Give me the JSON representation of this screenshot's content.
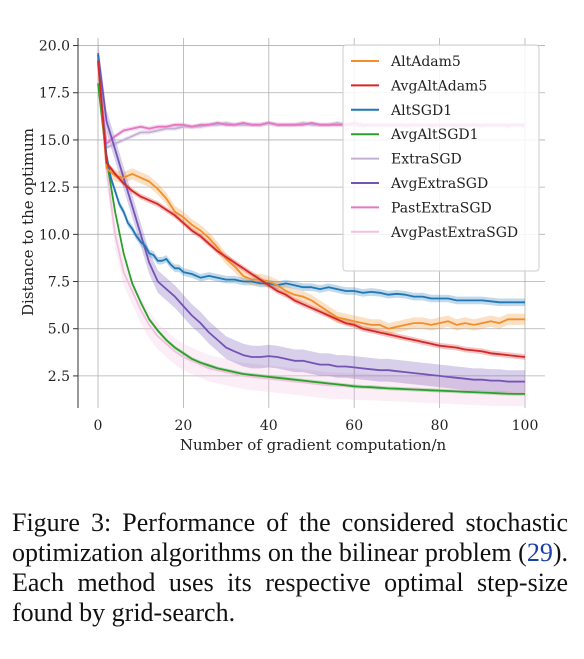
{
  "caption": {
    "prefix": "Figure 3:",
    "text_before_ref": "Performance of the considered stochastic optimization algorithms on the bilinear problem (",
    "ref": "29",
    "text_after_ref": "). Each method uses its respective optimal step-size found by grid-search."
  },
  "chart_data": {
    "type": "line",
    "title": "",
    "xlabel": "Number of gradient computation/n",
    "ylabel": "Distance to the optimum",
    "xlim": [
      0,
      100
    ],
    "ylim": [
      0.8,
      20.4
    ],
    "xticks": [
      0,
      20,
      40,
      60,
      80,
      100
    ],
    "yticks": [
      2.5,
      5.0,
      7.5,
      10.0,
      12.5,
      15.0,
      17.5,
      20.0
    ],
    "xtick_labels": [
      "0",
      "20",
      "40",
      "60",
      "80",
      "100"
    ],
    "ytick_labels": [
      "2.5",
      "5.0",
      "7.5",
      "10.0",
      "12.5",
      "15.0",
      "17.5",
      "20.0"
    ],
    "grid": true,
    "legend_position": "top-right",
    "series": [
      {
        "name": "AltAdam5",
        "color": "#f28e2b",
        "x": [
          0,
          2,
          4,
          6,
          8,
          10,
          12,
          14,
          16,
          18,
          20,
          22,
          24,
          26,
          28,
          30,
          32,
          34,
          36,
          38,
          40,
          42,
          44,
          46,
          48,
          50,
          52,
          54,
          56,
          58,
          60,
          62,
          64,
          66,
          68,
          70,
          72,
          74,
          76,
          78,
          80,
          82,
          84,
          86,
          88,
          90,
          92,
          94,
          96,
          98,
          100
        ],
        "y": [
          19.2,
          13.5,
          13.1,
          13.0,
          13.2,
          13.0,
          12.8,
          12.4,
          11.9,
          11.2,
          10.9,
          10.5,
          10.2,
          9.8,
          9.3,
          8.7,
          8.3,
          7.8,
          7.6,
          7.6,
          7.5,
          7.3,
          7.0,
          6.8,
          6.7,
          6.5,
          6.2,
          5.9,
          5.6,
          5.5,
          5.4,
          5.3,
          5.2,
          5.2,
          5.0,
          5.1,
          5.2,
          5.3,
          5.3,
          5.2,
          5.3,
          5.4,
          5.2,
          5.3,
          5.2,
          5.3,
          5.4,
          5.3,
          5.5,
          5.5,
          5.5
        ],
        "band": 0.3
      },
      {
        "name": "AvgAltAdam5",
        "color": "#d62728",
        "x": [
          0,
          2,
          4,
          6,
          8,
          10,
          12,
          14,
          16,
          18,
          20,
          22,
          24,
          26,
          28,
          30,
          32,
          34,
          36,
          38,
          40,
          42,
          44,
          46,
          48,
          50,
          52,
          54,
          56,
          58,
          60,
          62,
          64,
          66,
          68,
          70,
          72,
          74,
          76,
          78,
          80,
          82,
          84,
          86,
          88,
          90,
          92,
          94,
          96,
          98,
          100
        ],
        "y": [
          19.2,
          13.8,
          13.2,
          12.7,
          12.3,
          12.0,
          11.8,
          11.6,
          11.3,
          11.0,
          10.6,
          10.2,
          9.9,
          9.5,
          9.1,
          8.8,
          8.5,
          8.2,
          7.9,
          7.6,
          7.3,
          7.0,
          6.8,
          6.5,
          6.3,
          6.1,
          5.9,
          5.7,
          5.5,
          5.3,
          5.2,
          5.0,
          4.9,
          4.8,
          4.7,
          4.6,
          4.5,
          4.4,
          4.3,
          4.2,
          4.1,
          4.05,
          4.0,
          3.9,
          3.85,
          3.8,
          3.7,
          3.65,
          3.6,
          3.55,
          3.5
        ],
        "band": 0.15
      },
      {
        "name": "AltSGD1",
        "color": "#1f77b4",
        "x": [
          0,
          1,
          2,
          3,
          4,
          5,
          6,
          7,
          8,
          9,
          10,
          11,
          12,
          13,
          14,
          15,
          16,
          17,
          18,
          19,
          20,
          22,
          24,
          26,
          28,
          30,
          32,
          34,
          36,
          38,
          40,
          42,
          44,
          46,
          48,
          50,
          52,
          54,
          56,
          58,
          60,
          62,
          64,
          66,
          68,
          70,
          72,
          74,
          76,
          78,
          80,
          82,
          84,
          86,
          88,
          90,
          92,
          94,
          96,
          98,
          100
        ],
        "y": [
          19.5,
          16.5,
          14.2,
          13.0,
          12.3,
          11.6,
          11.2,
          10.6,
          10.3,
          9.9,
          9.6,
          9.4,
          9.0,
          8.9,
          8.6,
          8.6,
          8.7,
          8.4,
          8.2,
          8.2,
          8.0,
          7.9,
          7.7,
          7.8,
          7.7,
          7.6,
          7.6,
          7.5,
          7.5,
          7.4,
          7.4,
          7.3,
          7.4,
          7.3,
          7.2,
          7.2,
          7.1,
          7.2,
          7.1,
          7.0,
          7.0,
          6.9,
          6.95,
          6.9,
          6.8,
          6.85,
          6.8,
          6.7,
          6.7,
          6.6,
          6.6,
          6.6,
          6.5,
          6.5,
          6.5,
          6.5,
          6.45,
          6.4,
          6.4,
          6.4,
          6.4
        ],
        "band": 0.2
      },
      {
        "name": "AvgAltSGD1",
        "color": "#2ca02c",
        "x": [
          0,
          2,
          4,
          6,
          8,
          10,
          12,
          14,
          16,
          18,
          20,
          22,
          24,
          26,
          28,
          30,
          32,
          34,
          36,
          38,
          40,
          42,
          44,
          46,
          48,
          50,
          52,
          54,
          56,
          58,
          60,
          62,
          64,
          66,
          68,
          70,
          72,
          74,
          76,
          78,
          80,
          82,
          84,
          86,
          88,
          90,
          92,
          94,
          96,
          98,
          100
        ],
        "y": [
          18.0,
          14.0,
          11.2,
          9.0,
          7.4,
          6.4,
          5.5,
          4.9,
          4.4,
          4.0,
          3.7,
          3.4,
          3.2,
          3.05,
          2.9,
          2.8,
          2.7,
          2.6,
          2.55,
          2.5,
          2.45,
          2.4,
          2.35,
          2.3,
          2.25,
          2.2,
          2.15,
          2.1,
          2.05,
          2.0,
          1.95,
          1.92,
          1.9,
          1.87,
          1.84,
          1.82,
          1.8,
          1.78,
          1.76,
          1.74,
          1.72,
          1.7,
          1.68,
          1.66,
          1.64,
          1.62,
          1.6,
          1.58,
          1.56,
          1.55,
          1.55
        ],
        "band": 0.1
      },
      {
        "name": "ExtraSGD",
        "color": "#c5b0d5",
        "x": [
          0,
          2,
          4,
          6,
          8,
          10,
          12,
          14,
          16,
          18,
          20,
          22,
          24,
          26,
          28,
          30,
          32,
          34,
          36,
          38,
          40,
          42,
          44,
          46,
          48,
          50,
          52,
          54,
          56,
          58,
          60,
          62,
          64,
          66,
          68,
          70,
          72,
          74,
          76,
          78,
          80,
          82,
          84,
          86,
          88,
          90,
          92,
          94,
          96,
          98,
          100
        ],
        "y": [
          19.3,
          14.6,
          14.8,
          15.0,
          15.2,
          15.4,
          15.4,
          15.5,
          15.6,
          15.6,
          15.7,
          15.7,
          15.7,
          15.8,
          15.8,
          15.9,
          15.8,
          15.8,
          15.8,
          15.8,
          15.9,
          15.8,
          15.8,
          15.8,
          15.9,
          15.8,
          15.8,
          15.8,
          15.9,
          15.8,
          15.8,
          15.7,
          15.8,
          15.8,
          15.8,
          15.8,
          15.7,
          15.8,
          15.8,
          15.7,
          15.8,
          15.8,
          15.7,
          15.8,
          15.8,
          15.7,
          15.8,
          15.8,
          15.7,
          15.8,
          15.7
        ],
        "band": 0.12
      },
      {
        "name": "AvgExtraSGD",
        "color": "#7453b5",
        "x": [
          0,
          2,
          4,
          6,
          8,
          10,
          12,
          14,
          16,
          18,
          20,
          22,
          24,
          26,
          28,
          30,
          32,
          34,
          36,
          38,
          40,
          42,
          44,
          46,
          48,
          50,
          52,
          54,
          56,
          58,
          60,
          62,
          64,
          66,
          68,
          70,
          72,
          74,
          76,
          78,
          80,
          82,
          84,
          86,
          88,
          90,
          92,
          94,
          96,
          98,
          100
        ],
        "y": [
          19.6,
          16.0,
          14.5,
          13.0,
          11.5,
          10.0,
          8.5,
          7.5,
          7.1,
          6.7,
          6.2,
          5.7,
          5.3,
          4.8,
          4.4,
          4.0,
          3.8,
          3.6,
          3.5,
          3.5,
          3.55,
          3.5,
          3.4,
          3.3,
          3.3,
          3.2,
          3.1,
          3.1,
          3.0,
          3.0,
          2.95,
          2.9,
          2.85,
          2.8,
          2.8,
          2.75,
          2.7,
          2.65,
          2.6,
          2.55,
          2.5,
          2.45,
          2.4,
          2.35,
          2.3,
          2.3,
          2.25,
          2.25,
          2.2,
          2.2,
          2.2
        ],
        "band": 0.6
      },
      {
        "name": "PastExtraSGD",
        "color": "#e377c2",
        "x": [
          0,
          2,
          4,
          6,
          8,
          10,
          12,
          14,
          16,
          18,
          20,
          22,
          24,
          26,
          28,
          30,
          32,
          34,
          36,
          38,
          40,
          42,
          44,
          46,
          48,
          50,
          52,
          54,
          56,
          58,
          60,
          62,
          64,
          66,
          68,
          70,
          72,
          74,
          76,
          78,
          80,
          82,
          84,
          86,
          88,
          90,
          92,
          94,
          96,
          98,
          100
        ],
        "y": [
          19.0,
          14.8,
          15.2,
          15.5,
          15.6,
          15.7,
          15.6,
          15.7,
          15.7,
          15.8,
          15.8,
          15.7,
          15.8,
          15.8,
          15.9,
          15.8,
          15.8,
          15.9,
          15.8,
          15.8,
          15.9,
          15.8,
          15.8,
          15.8,
          15.8,
          15.9,
          15.8,
          15.8,
          15.8,
          15.8,
          15.9,
          15.8,
          15.8,
          15.8,
          15.8,
          15.8,
          15.8,
          15.8,
          15.8,
          15.8,
          15.8,
          15.8,
          15.8,
          15.8,
          15.8,
          15.8,
          15.8,
          15.8,
          15.8,
          15.8,
          15.8
        ],
        "band": 0.12
      },
      {
        "name": "AvgPastExtraSGD",
        "color": "#f2c1dd",
        "x": [
          0,
          2,
          4,
          6,
          8,
          10,
          12,
          14,
          16,
          18,
          20,
          22,
          24,
          26,
          28,
          30,
          32,
          34,
          36,
          38,
          40,
          42,
          44,
          46,
          48,
          50,
          52,
          54,
          56,
          58,
          60,
          62,
          64,
          66,
          68,
          70,
          72,
          74,
          76,
          78,
          80,
          82,
          84,
          86,
          88,
          90,
          92,
          94,
          96,
          98,
          100
        ],
        "y": [
          19.0,
          13.5,
          10.0,
          8.0,
          7.0,
          6.0,
          5.2,
          4.6,
          4.2,
          3.8,
          3.5,
          3.3,
          3.1,
          2.9,
          2.8,
          2.7,
          2.6,
          2.5,
          2.45,
          2.4,
          2.35,
          2.3,
          2.25,
          2.2,
          2.15,
          2.1,
          2.05,
          2.0,
          1.98,
          1.96,
          1.94,
          1.92,
          1.9,
          1.88,
          1.86,
          1.84,
          1.82,
          1.8,
          1.78,
          1.76,
          1.74,
          1.72,
          1.7,
          1.68,
          1.66,
          1.64,
          1.62,
          1.6,
          1.6,
          1.6,
          1.6
        ],
        "band": 0.7
      }
    ]
  }
}
